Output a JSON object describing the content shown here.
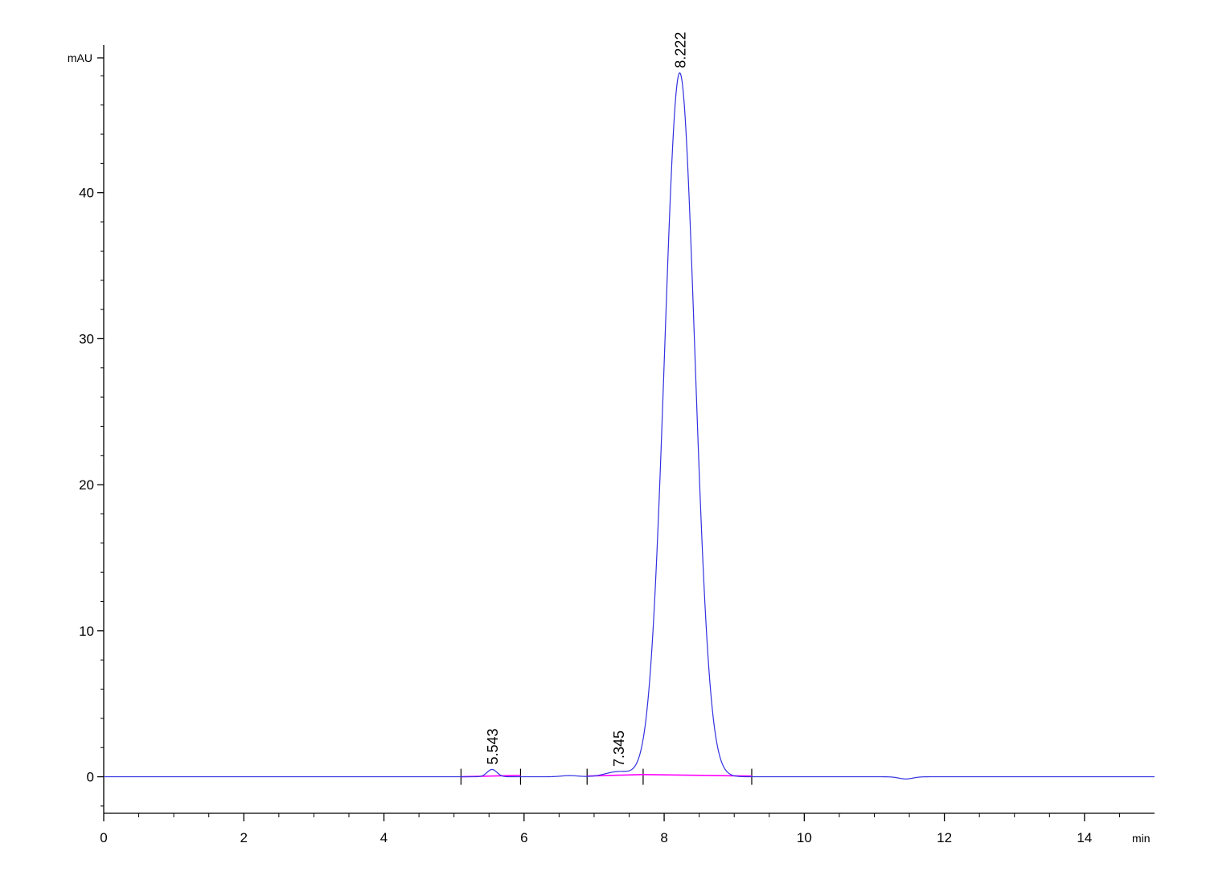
{
  "chart_data": {
    "type": "line",
    "xlabel": "min",
    "ylabel": "mAU",
    "xlim": [
      0,
      15
    ],
    "ylim": [
      -2.5,
      50
    ],
    "x_ticks": [
      0,
      2,
      4,
      6,
      8,
      10,
      12,
      14
    ],
    "x_tick_labels": [
      "0",
      "2",
      "4",
      "6",
      "8",
      "10",
      "12",
      "14"
    ],
    "y_ticks": [
      0,
      10,
      20,
      30,
      40
    ],
    "y_tick_labels": [
      "0",
      "10",
      "20",
      "30",
      "40"
    ],
    "grid": false,
    "series": [
      {
        "color": "#3030e0",
        "peaks": [
          {
            "rt": 5.543,
            "height": 0.5,
            "sigma": 0.07
          },
          {
            "rt": 6.65,
            "height": 0.08,
            "sigma": 0.12
          },
          {
            "rt": 7.345,
            "height": 0.35,
            "sigma": 0.18
          },
          {
            "rt": 8.222,
            "height": 48.2,
            "sigma": 0.215
          },
          {
            "rt": 11.45,
            "height": -0.15,
            "sigma": 0.1
          }
        ]
      }
    ],
    "baselines": [
      {
        "color": "#ff00ff",
        "from": [
          5.1,
          0.0
        ],
        "to": [
          5.95,
          0.1
        ]
      },
      {
        "color": "#ff00ff",
        "from": [
          6.9,
          0.05
        ],
        "to": [
          7.7,
          0.15
        ]
      },
      {
        "color": "#ff00ff",
        "from": [
          7.7,
          0.15
        ],
        "to": [
          9.25,
          0.05
        ]
      }
    ],
    "integration_marks": [
      5.1,
      5.95,
      6.9,
      7.7,
      9.25
    ],
    "peak_labels": [
      {
        "rt": 5.543,
        "text": "5.543"
      },
      {
        "rt": 7.345,
        "text": "7.345"
      },
      {
        "rt": 8.222,
        "text": "8.222"
      }
    ]
  }
}
